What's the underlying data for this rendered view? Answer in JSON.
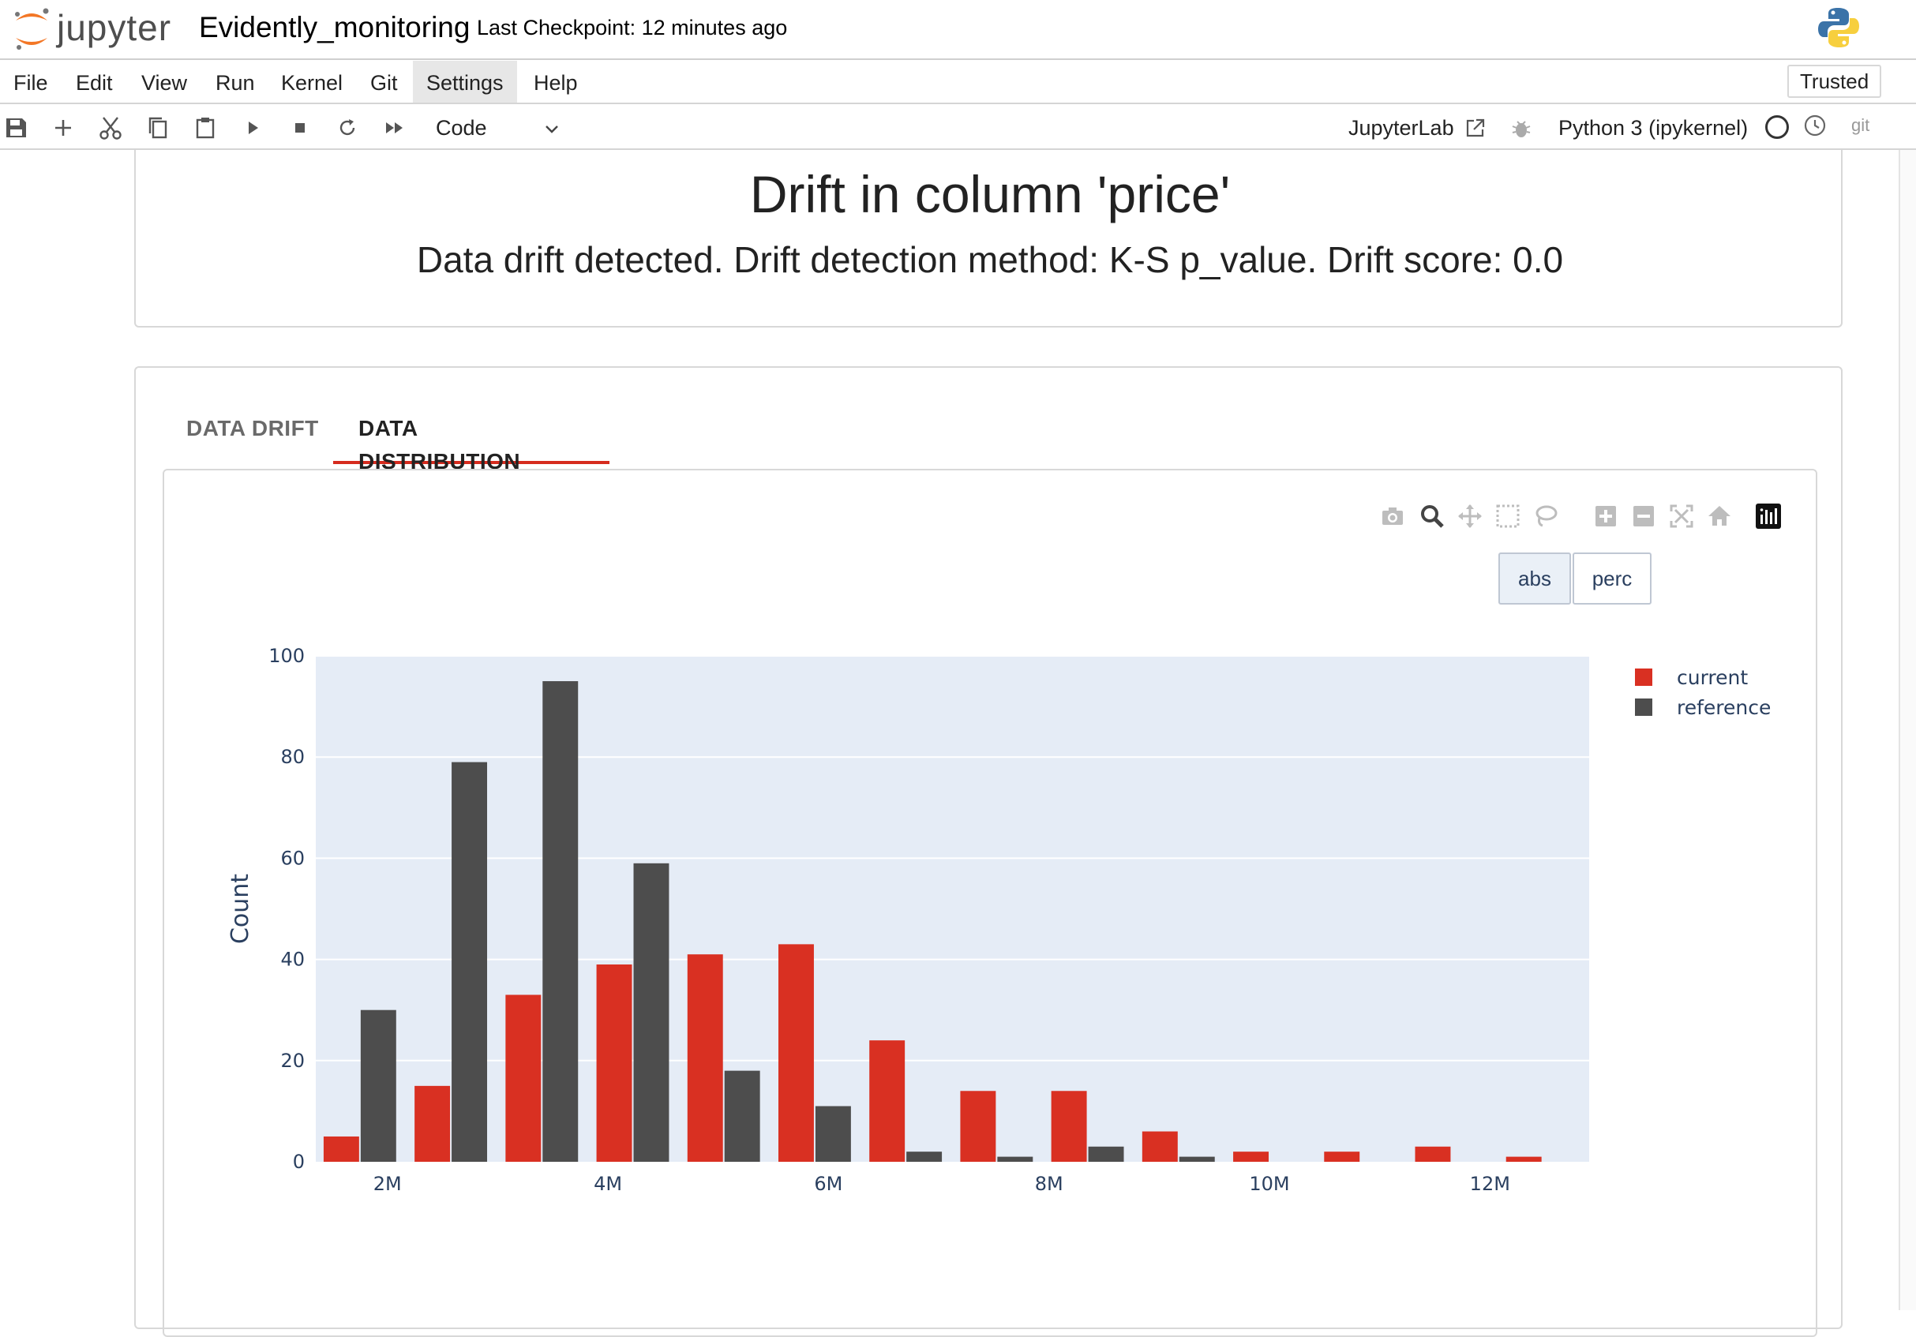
{
  "header": {
    "logo_text": "jupyter",
    "notebook_name": "Evidently_monitoring",
    "checkpoint": "Last Checkpoint: 12 minutes ago"
  },
  "menu": {
    "items": [
      "File",
      "Edit",
      "View",
      "Run",
      "Kernel",
      "Git",
      "Settings",
      "Help"
    ],
    "active": "Settings",
    "trusted_label": "Trusted"
  },
  "toolbar": {
    "cell_type": "Code",
    "jupyterlab_label": "JupyterLab",
    "kernel_name": "Python 3 (ipykernel)",
    "git_label": "git"
  },
  "report": {
    "title": "Drift in column 'price'",
    "subtitle": "Data drift detected. Drift detection method: K-S p_value. Drift score: 0.0",
    "tabs": [
      "DATA DRIFT",
      "DATA DISTRIBUTION"
    ],
    "active_tab": "DATA DISTRIBUTION",
    "toggle": {
      "abs": "abs",
      "perc": "perc",
      "selected": "abs"
    }
  },
  "colors": {
    "current": "#d93022",
    "reference": "#4d4d4d",
    "plot_bg": "#e5ecf6",
    "accent": "#d52b1e",
    "axis_text": "#2a3f5f"
  },
  "chart_data": {
    "type": "bar",
    "title": "",
    "xlabel": "",
    "ylabel": "Count",
    "ylim": [
      0,
      100
    ],
    "yticks": [
      0,
      20,
      40,
      60,
      80,
      100
    ],
    "xticks": [
      {
        "value": 2000000,
        "label": "2M"
      },
      {
        "value": 4000000,
        "label": "4M"
      },
      {
        "value": 6000000,
        "label": "6M"
      },
      {
        "value": 8000000,
        "label": "8M"
      },
      {
        "value": 10000000,
        "label": "10M"
      },
      {
        "value": 12000000,
        "label": "12M"
      }
    ],
    "xlim": [
      1350000,
      12900000
    ],
    "bin_centers": [
      1750000,
      2575000,
      3400000,
      4225000,
      5050000,
      5875000,
      6700000,
      7525000,
      8350000,
      9175000,
      10000000,
      10825000,
      11650000,
      12475000
    ],
    "legend_position": "top-right",
    "series": [
      {
        "name": "current",
        "values": [
          5,
          15,
          33,
          39,
          41,
          43,
          24,
          14,
          14,
          6,
          2,
          2,
          3,
          1
        ]
      },
      {
        "name": "reference",
        "values": [
          30,
          79,
          95,
          59,
          18,
          11,
          2,
          1,
          3,
          1,
          0,
          0,
          0,
          0
        ]
      }
    ]
  }
}
